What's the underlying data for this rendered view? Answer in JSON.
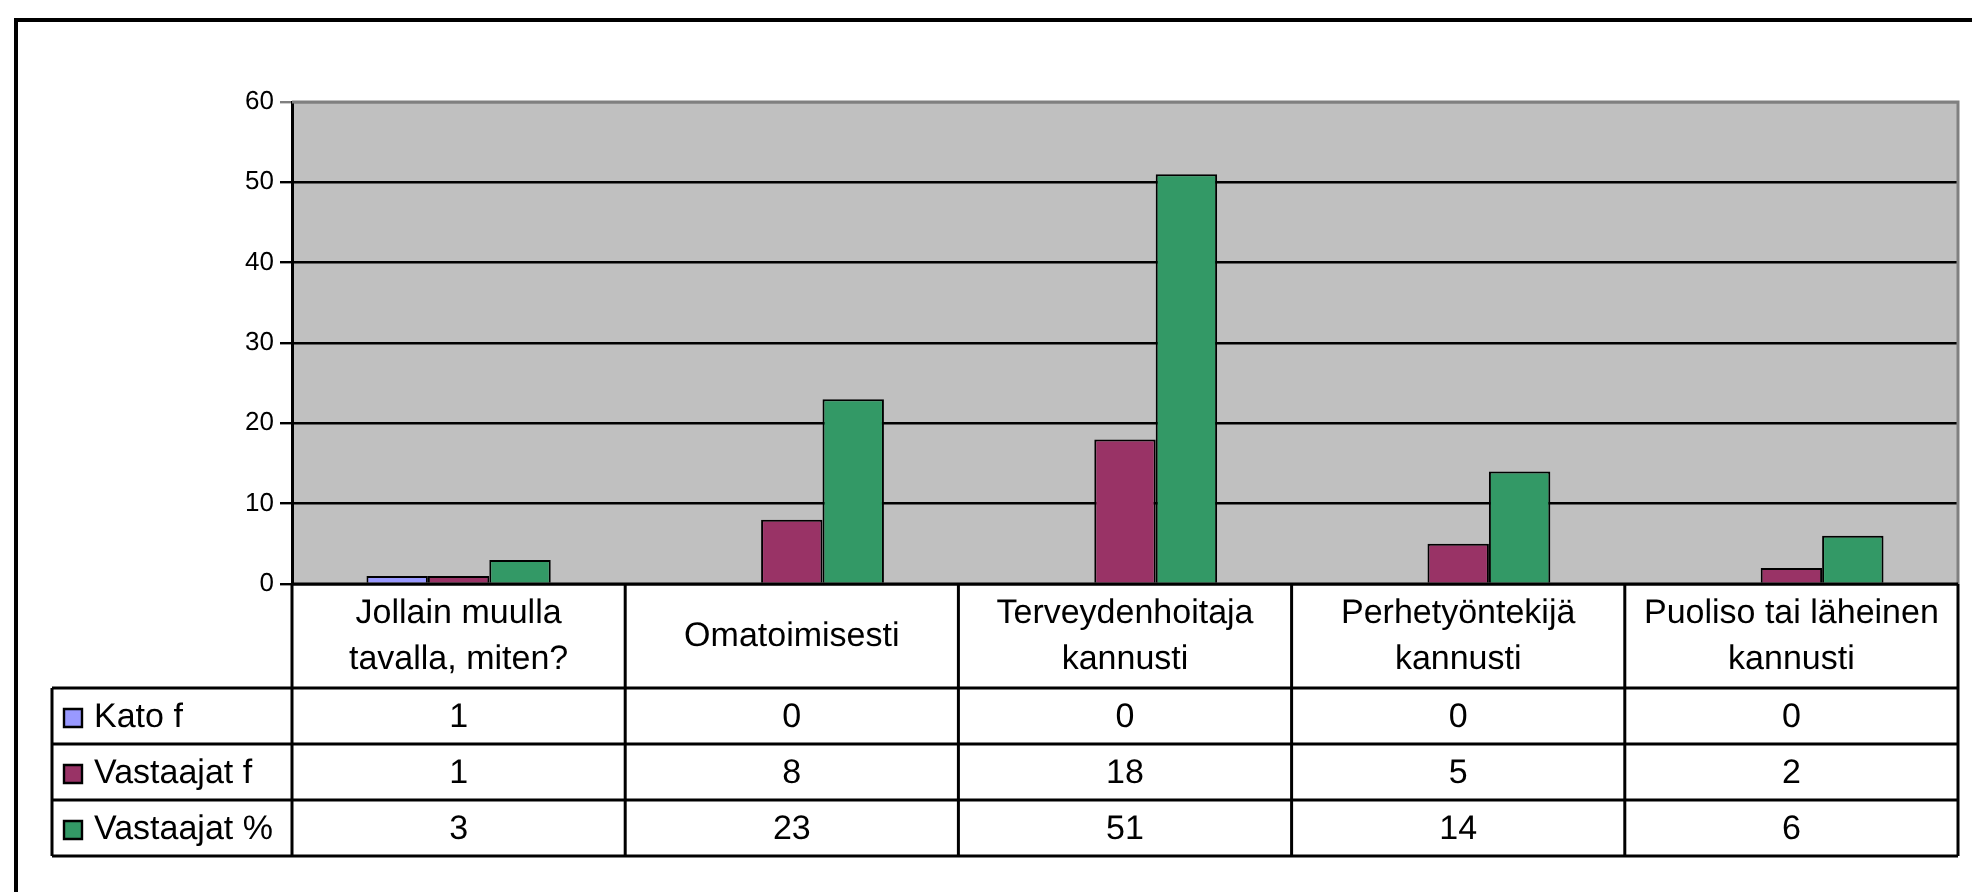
{
  "chart_data": {
    "type": "bar",
    "categories": [
      "Jollain muulla tavalla, miten?",
      "Omatoimisesti",
      "Terveydenhoitaja kannusti",
      "Perhetyöntekijä kannusti",
      "Puoliso tai läheinen kannusti"
    ],
    "series": [
      {
        "name": "Kato f",
        "color": "#9999ff",
        "values": [
          1,
          0,
          0,
          0,
          0
        ]
      },
      {
        "name": "Vastaajat f",
        "color": "#993366",
        "values": [
          1,
          8,
          18,
          5,
          2
        ]
      },
      {
        "name": "Vastaajat %",
        "color": "#339966",
        "values": [
          3,
          23,
          51,
          14,
          6
        ]
      }
    ],
    "ylim": [
      0,
      60
    ],
    "yticks": [
      0,
      10,
      20,
      30,
      40,
      50,
      60
    ],
    "grid": "y",
    "legend": "bottom left",
    "data_labels": true
  }
}
